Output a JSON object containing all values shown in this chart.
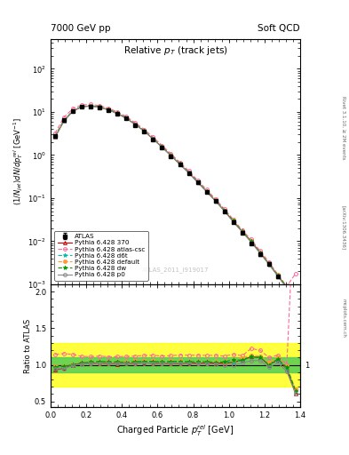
{
  "title_left": "7000 GeV pp",
  "title_right": "Soft QCD",
  "main_title_1": "Relative p",
  "main_title_2": "T",
  "main_title_3": " (track jets)",
  "xlabel": "Charged Particle $p_{T}^{rel}$ [GeV]",
  "ylabel_main": "(1/Njet)dN/dp$_{T}^{rel}$ [GeV$^{-1}$]",
  "ylabel_ratio": "Ratio to ATLAS",
  "right_label": "Rivet 3.1.10, ≥ 2M events",
  "watermark": "ATLAS_2011_I919017",
  "arxiv": "[arXiv:1306.3436]",
  "mcplots": "mcplots.cern.ch",
  "x_data": [
    0.025,
    0.075,
    0.125,
    0.175,
    0.225,
    0.275,
    0.325,
    0.375,
    0.425,
    0.475,
    0.525,
    0.575,
    0.625,
    0.675,
    0.725,
    0.775,
    0.825,
    0.875,
    0.925,
    0.975,
    1.025,
    1.075,
    1.125,
    1.175,
    1.225,
    1.275,
    1.325,
    1.375
  ],
  "atlas_y": [
    2.8,
    6.5,
    10.5,
    13.0,
    13.5,
    12.5,
    11.0,
    9.0,
    7.0,
    5.0,
    3.5,
    2.3,
    1.5,
    0.95,
    0.6,
    0.38,
    0.23,
    0.14,
    0.085,
    0.05,
    0.028,
    0.016,
    0.009,
    0.005,
    0.003,
    0.0015,
    0.0009,
    0.0005
  ],
  "atlas_yerr": [
    0.15,
    0.25,
    0.35,
    0.4,
    0.4,
    0.38,
    0.35,
    0.3,
    0.25,
    0.2,
    0.15,
    0.1,
    0.07,
    0.05,
    0.03,
    0.02,
    0.012,
    0.008,
    0.005,
    0.003,
    0.002,
    0.001,
    0.0006,
    0.0004,
    0.0002,
    0.0001,
    7e-05,
    4e-05
  ],
  "py370_y": [
    2.6,
    6.2,
    10.5,
    13.2,
    13.8,
    12.8,
    11.2,
    9.1,
    7.1,
    5.1,
    3.6,
    2.35,
    1.52,
    0.97,
    0.61,
    0.39,
    0.235,
    0.143,
    0.087,
    0.051,
    0.029,
    0.017,
    0.01,
    0.0055,
    0.003,
    0.0016,
    0.00085,
    0.0003
  ],
  "py_csc_y": [
    3.2,
    7.5,
    12.0,
    14.5,
    15.0,
    14.0,
    12.2,
    10.0,
    7.8,
    5.6,
    3.95,
    2.6,
    1.68,
    1.07,
    0.68,
    0.43,
    0.26,
    0.158,
    0.096,
    0.056,
    0.032,
    0.018,
    0.011,
    0.006,
    0.0033,
    0.0017,
    0.0009,
    0.0018
  ],
  "py_d6t_y": [
    2.7,
    6.3,
    10.5,
    13.3,
    13.9,
    13.0,
    11.4,
    9.3,
    7.2,
    5.2,
    3.65,
    2.4,
    1.55,
    0.99,
    0.625,
    0.395,
    0.238,
    0.145,
    0.088,
    0.052,
    0.029,
    0.017,
    0.01,
    0.0055,
    0.003,
    0.0016,
    0.00086,
    0.00032
  ],
  "py_default_y": [
    2.75,
    6.4,
    10.6,
    13.4,
    14.0,
    13.1,
    11.5,
    9.4,
    7.3,
    5.25,
    3.7,
    2.42,
    1.57,
    1.0,
    0.63,
    0.398,
    0.24,
    0.146,
    0.089,
    0.052,
    0.03,
    0.0175,
    0.0102,
    0.0056,
    0.0031,
    0.00165,
    0.00088,
    0.00033
  ],
  "py_dw_y": [
    2.72,
    6.35,
    10.55,
    13.35,
    14.0,
    13.1,
    11.45,
    9.35,
    7.25,
    5.22,
    3.67,
    2.41,
    1.56,
    0.995,
    0.628,
    0.397,
    0.239,
    0.146,
    0.088,
    0.052,
    0.03,
    0.017,
    0.01,
    0.0055,
    0.003,
    0.00162,
    0.00087,
    0.00032
  ],
  "py_p0_y": [
    2.65,
    6.15,
    10.4,
    13.1,
    13.7,
    12.8,
    11.2,
    9.15,
    7.1,
    5.1,
    3.58,
    2.35,
    1.52,
    0.97,
    0.612,
    0.387,
    0.233,
    0.142,
    0.086,
    0.05,
    0.028,
    0.0164,
    0.0095,
    0.0053,
    0.0029,
    0.00154,
    0.00082,
    0.0003
  ],
  "colors": {
    "atlas": "#000000",
    "py370": "#cc0000",
    "py_csc": "#ff6699",
    "py_d6t": "#00bbaa",
    "py_default": "#ff9933",
    "py_dw": "#009900",
    "py_p0": "#888888"
  },
  "ylim_main": [
    0.001,
    500
  ],
  "ylim_ratio": [
    0.42,
    2.1
  ],
  "xlim": [
    0.0,
    1.4
  ]
}
